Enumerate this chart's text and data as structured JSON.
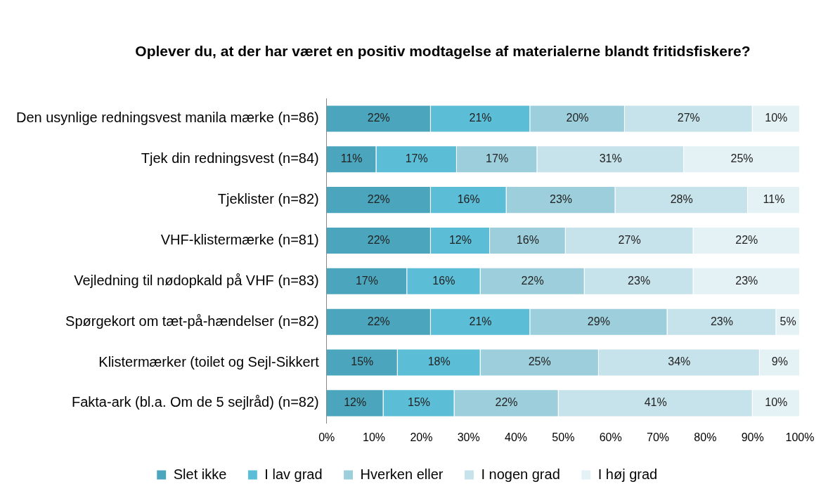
{
  "chart_data": {
    "type": "bar",
    "orientation": "horizontal",
    "stacked": true,
    "title": "Oplever du, at der har været en positiv modtagelse af materialerne blandt fritidsfiskere?",
    "categories": [
      "Den usynlige redningsvest manila mærke (n=86)",
      "Tjek din redningsvest (n=84)",
      "Tjeklister (n=82)",
      "VHF-klistermærke (n=81)",
      "Vejledning til nødopkald på VHF (n=83)",
      "Spørgekort om tæt-på-hændelser (n=82)",
      "Klistermærker (toilet og Sejl-Sikkert",
      "Fakta-ark (bl.a. Om de 5 sejlråd) (n=82)"
    ],
    "series": [
      {
        "name": "Slet ikke",
        "color": "#4ba6bd",
        "values": [
          22,
          10.5,
          22,
          22,
          17,
          22,
          15,
          12
        ],
        "value_labels": [
          "22%",
          "11%",
          "22%",
          "22%",
          "17%",
          "22%",
          "15%",
          "12%"
        ]
      },
      {
        "name": "I lav grad",
        "color": "#5bbdd6",
        "values": [
          21,
          17,
          16,
          12.5,
          15.5,
          21,
          17.5,
          15
        ],
        "value_labels": [
          "21%",
          "17%",
          "16%",
          "12%",
          "16%",
          "21%",
          "18%",
          "15%"
        ]
      },
      {
        "name": "Hverken eller",
        "color": "#9dcedc",
        "values": [
          20,
          17,
          23,
          16,
          22,
          29,
          25,
          22
        ],
        "value_labels": [
          "20%",
          "17%",
          "23%",
          "16%",
          "22%",
          "29%",
          "25%",
          "22%"
        ]
      },
      {
        "name": "I nogen grad",
        "color": "#c6e2ea",
        "values": [
          27,
          31,
          28,
          27,
          23,
          23,
          34,
          41
        ],
        "value_labels": [
          "27%",
          "31%",
          "28%",
          "27%",
          "23%",
          "23%",
          "34%",
          "41%"
        ]
      },
      {
        "name": "I høj grad",
        "color": "#e4f1f5",
        "values": [
          10,
          24.5,
          11,
          22.5,
          22.5,
          5,
          8.5,
          10
        ],
        "value_labels": [
          "10%",
          "25%",
          "11%",
          "22%",
          "23%",
          "5%",
          "9%",
          "10%"
        ]
      }
    ],
    "xlim": [
      0,
      100
    ],
    "xticks": [
      {
        "value": 0,
        "label": "0%"
      },
      {
        "value": 10,
        "label": "10%"
      },
      {
        "value": 20,
        "label": "20%"
      },
      {
        "value": 30,
        "label": "30%"
      },
      {
        "value": 40,
        "label": "40%"
      },
      {
        "value": 50,
        "label": "50%"
      },
      {
        "value": 60,
        "label": "60%"
      },
      {
        "value": 70,
        "label": "70%"
      },
      {
        "value": 80,
        "label": "80%"
      },
      {
        "value": 90,
        "label": "90%"
      },
      {
        "value": 100,
        "label": "100%"
      }
    ],
    "grid": false,
    "legend": "bottom"
  }
}
